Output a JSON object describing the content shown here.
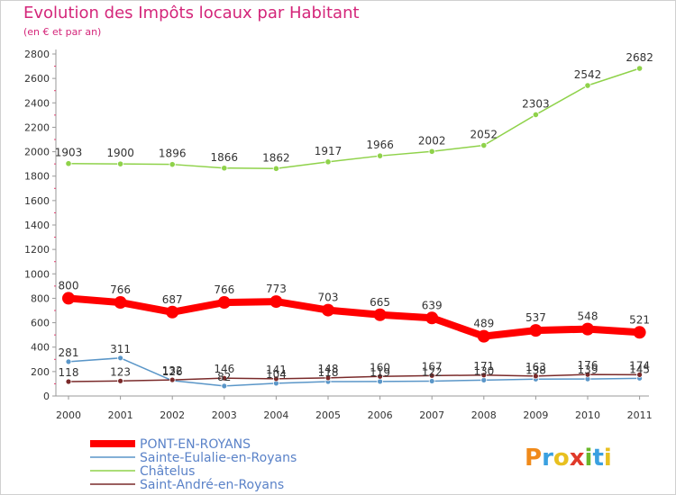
{
  "chart_data": {
    "type": "line",
    "title": "Evolution des Impôts locaux par Habitant",
    "subtitle": "(en € et par an)",
    "xlabel": "",
    "ylabel": "",
    "ylim": [
      0,
      2800
    ],
    "y_ticks": [
      0,
      200,
      400,
      600,
      800,
      1000,
      1200,
      1400,
      1600,
      1800,
      2000,
      2200,
      2400,
      2600,
      2800
    ],
    "categories": [
      "2000",
      "2001",
      "2002",
      "2003",
      "2004",
      "2005",
      "2006",
      "2007",
      "2008",
      "2009",
      "2010",
      "2011"
    ],
    "series": [
      {
        "name": "PONT-EN-ROYANS",
        "color": "#ff0000",
        "values": [
          800,
          766,
          687,
          766,
          773,
          703,
          665,
          639,
          489,
          537,
          548,
          521
        ],
        "labels": [
          "800",
          "766",
          "687",
          "766",
          "773",
          "703",
          "665",
          "639",
          "489",
          "537",
          "548",
          "521"
        ]
      },
      {
        "name": "Sainte-Eulalie-en-Royans",
        "color": "#5a96c8",
        "values": [
          281,
          311,
          126,
          82,
          104,
          118,
          119,
          122,
          130,
          138,
          139,
          145
        ],
        "labels": [
          "281",
          "311",
          "126",
          "82",
          "104",
          "118",
          "119",
          "122",
          "130",
          "138",
          "139",
          "145"
        ]
      },
      {
        "name": "Châtelus",
        "color": "#8fd24a",
        "values": [
          1903,
          1900,
          1896,
          1866,
          1862,
          1917,
          1966,
          2002,
          2052,
          2303,
          2542,
          2682
        ],
        "labels": [
          "1903",
          "1900",
          "1896",
          "1866",
          "1862",
          "1917",
          "1966",
          "2002",
          "2052",
          "2303",
          "2542",
          "2682"
        ]
      },
      {
        "name": "Saint-André-en-Royans",
        "color": "#7a2a2a",
        "values": [
          118,
          123,
          132,
          146,
          141,
          148,
          160,
          167,
          171,
          163,
          176,
          174
        ],
        "labels": [
          "118",
          "123",
          "132",
          "146",
          "141",
          "148",
          "160",
          "167",
          "171",
          "163",
          "176",
          "174"
        ]
      }
    ],
    "legend_position": "bottom-left"
  },
  "logo": {
    "text": "Proxiti"
  }
}
